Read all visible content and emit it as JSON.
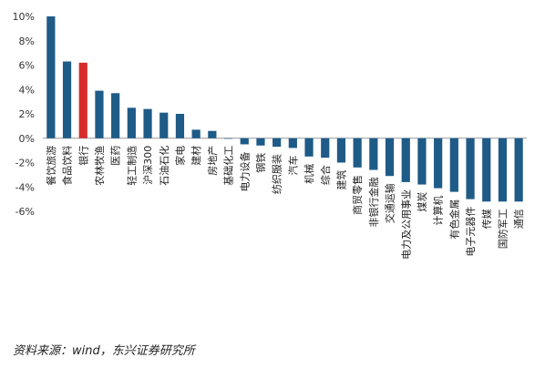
{
  "chart_data": {
    "type": "bar",
    "categories": [
      "餐饮旅游",
      "食品饮料",
      "银行",
      "农林牧渔",
      "医药",
      "轻工制造",
      "沪深300",
      "石油石化",
      "家电",
      "建材",
      "房地产",
      "基础化工",
      "电力设备",
      "钢铁",
      "纺织服装",
      "汽车",
      "机械",
      "综合",
      "建筑",
      "商贸零售",
      "非银行金融",
      "交通运输",
      "电力及公用事业",
      "煤炭",
      "计算机",
      "有色金属",
      "电子元器件",
      "传媒",
      "国防军工",
      "通信"
    ],
    "values": [
      10.0,
      6.3,
      6.2,
      3.9,
      3.7,
      2.5,
      2.4,
      2.1,
      2.0,
      0.7,
      0.6,
      0.0,
      -0.5,
      -0.6,
      -0.7,
      -0.8,
      -1.5,
      -1.6,
      -2.0,
      -2.4,
      -2.6,
      -3.1,
      -3.6,
      -3.8,
      -4.1,
      -4.4,
      -5.0,
      -5.2,
      -5.2,
      -5.2
    ],
    "highlight_index": 2,
    "ylim": [
      -6,
      10
    ],
    "yticks": [
      -6,
      -4,
      -2,
      0,
      2,
      4,
      6,
      8,
      10
    ],
    "ytick_labels": [
      "-6%",
      "-4%",
      "-2%",
      "0%",
      "2%",
      "4%",
      "6%",
      "8%",
      "10%"
    ],
    "colors": {
      "bar": "#1f5b87",
      "highlight": "#d62b2b",
      "zero_line": "#999999"
    },
    "grid": false,
    "title": "",
    "xlabel": "",
    "ylabel": ""
  },
  "source": "资料来源：wind，东兴证券研究所"
}
